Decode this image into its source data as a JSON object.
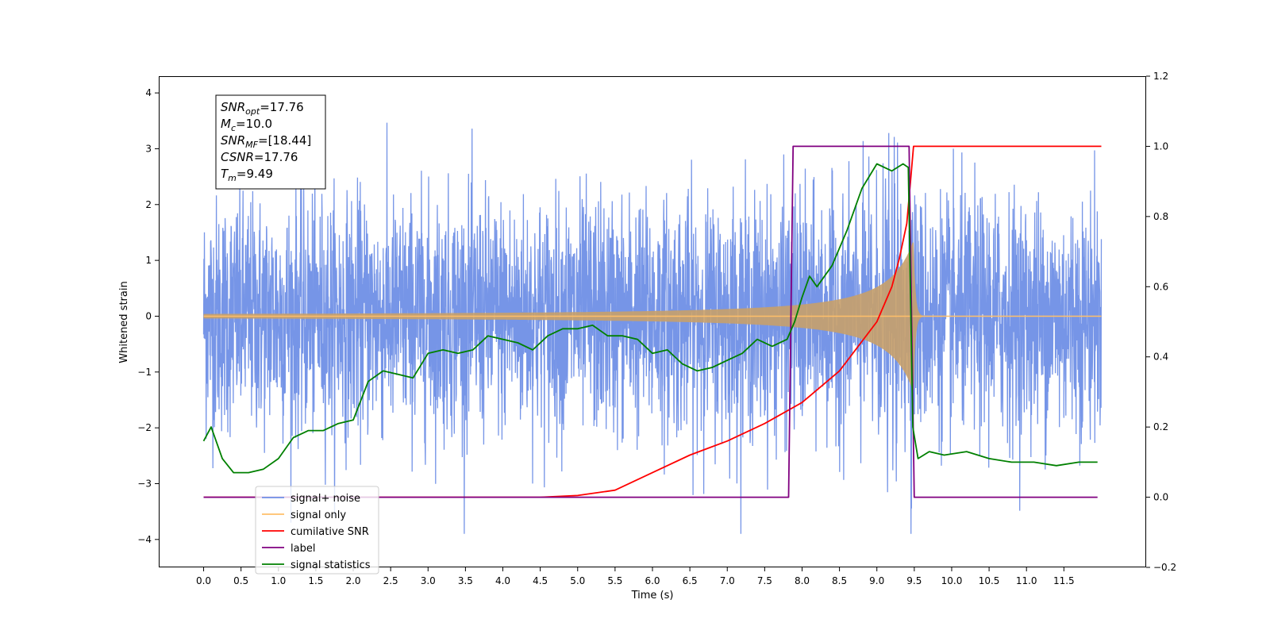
{
  "chart_data": {
    "type": "line",
    "xlabel": "Time (s)",
    "ylabel": "Whitened strain",
    "xlim": [
      -0.6,
      12.6
    ],
    "ylim": [
      -4.5,
      4.3
    ],
    "y2lim": [
      -0.2,
      1.2
    ],
    "x_ticks": [
      0.0,
      0.5,
      1.0,
      1.5,
      2.0,
      2.5,
      3.0,
      3.5,
      4.0,
      4.5,
      5.0,
      5.5,
      6.0,
      6.5,
      7.0,
      7.5,
      8.0,
      8.5,
      9.0,
      9.5,
      10.0,
      10.5,
      11.0,
      11.5
    ],
    "x_tick_labels": [
      "0.0",
      "0.5",
      "1.0",
      "1.5",
      "2.0",
      "2.5",
      "3.0",
      "3.5",
      "4.0",
      "4.5",
      "5.0",
      "5.5",
      "6.0",
      "6.5",
      "7.0",
      "7.5",
      "8.0",
      "8.5",
      "9.0",
      "9.5",
      "10.0",
      "10.5",
      "11.0",
      "11.5"
    ],
    "y_ticks": [
      -4,
      -3,
      -2,
      -1,
      0,
      1,
      2,
      3,
      4
    ],
    "y_tick_labels": [
      "−4",
      "−3",
      "−2",
      "−1",
      "0",
      "1",
      "2",
      "3",
      "4"
    ],
    "y2_ticks": [
      -0.2,
      0.0,
      0.2,
      0.4,
      0.6,
      0.8,
      1.0,
      1.2
    ],
    "y2_tick_labels": [
      "−0.2",
      "0.0",
      "0.2",
      "0.4",
      "0.6",
      "0.8",
      "1.0",
      "1.2"
    ],
    "grid": false,
    "legend_position": "lower-left",
    "annotation_lines": [
      {
        "label": "SNR",
        "sub": "opt",
        "value": "=17.76"
      },
      {
        "label": "M",
        "sub": "c",
        "value": "=10.0"
      },
      {
        "label": "SNR",
        "sub": "MF",
        "value": "=[18.44]"
      },
      {
        "label": "CSNR",
        "sub": "",
        "value": "=17.76"
      },
      {
        "label": "T",
        "sub": "m",
        "value": "=9.49"
      }
    ],
    "series": [
      {
        "name": "signal+ noise",
        "color": "#6f8fe6",
        "axis": "left",
        "x_range": [
          0.0,
          12.0
        ],
        "noise_sigma": 1.0,
        "visible_range": [
          -3.9,
          3.9
        ]
      },
      {
        "name": "signal only",
        "color": "#ffbf69",
        "axis": "left",
        "x_range": [
          0.0,
          12.0
        ],
        "peak_time": 9.49,
        "peak_amplitude": 1.35
      },
      {
        "name": "cumilative SNR",
        "color": "#ff0000",
        "axis": "right",
        "x": [
          0.0,
          4.5,
          5.0,
          5.5,
          6.0,
          6.5,
          7.0,
          7.5,
          8.0,
          8.5,
          9.0,
          9.2,
          9.3,
          9.4,
          9.45,
          9.49,
          12.0
        ],
        "y": [
          0.0,
          0.0,
          0.005,
          0.02,
          0.07,
          0.12,
          0.16,
          0.21,
          0.27,
          0.36,
          0.5,
          0.6,
          0.68,
          0.78,
          0.9,
          1.0,
          1.0
        ]
      },
      {
        "name": "label",
        "color": "#800080",
        "axis": "right",
        "x": [
          0.0,
          7.82,
          7.88,
          9.43,
          9.5,
          11.95
        ],
        "y": [
          0.0,
          0.0,
          1.0,
          1.0,
          0.0,
          0.0
        ]
      },
      {
        "name": "signal statistics",
        "color": "#008000",
        "axis": "right",
        "x": [
          0.0,
          0.1,
          0.25,
          0.4,
          0.6,
          0.8,
          1.0,
          1.2,
          1.4,
          1.6,
          1.8,
          2.0,
          2.2,
          2.4,
          2.6,
          2.8,
          3.0,
          3.2,
          3.4,
          3.6,
          3.8,
          4.0,
          4.2,
          4.4,
          4.6,
          4.8,
          5.0,
          5.2,
          5.4,
          5.6,
          5.8,
          6.0,
          6.2,
          6.4,
          6.6,
          6.8,
          7.0,
          7.2,
          7.4,
          7.6,
          7.8,
          7.9,
          8.0,
          8.1,
          8.2,
          8.4,
          8.6,
          8.8,
          9.0,
          9.2,
          9.35,
          9.42,
          9.48,
          9.55,
          9.7,
          9.9,
          10.2,
          10.5,
          10.8,
          11.1,
          11.4,
          11.7,
          11.95
        ],
        "y": [
          0.16,
          0.2,
          0.11,
          0.07,
          0.07,
          0.08,
          0.11,
          0.17,
          0.19,
          0.19,
          0.21,
          0.22,
          0.33,
          0.36,
          0.35,
          0.34,
          0.41,
          0.42,
          0.41,
          0.42,
          0.46,
          0.45,
          0.44,
          0.42,
          0.46,
          0.48,
          0.48,
          0.49,
          0.46,
          0.46,
          0.45,
          0.41,
          0.42,
          0.38,
          0.36,
          0.37,
          0.39,
          0.41,
          0.45,
          0.43,
          0.45,
          0.5,
          0.57,
          0.63,
          0.6,
          0.66,
          0.76,
          0.88,
          0.95,
          0.93,
          0.95,
          0.94,
          0.2,
          0.11,
          0.13,
          0.12,
          0.13,
          0.11,
          0.1,
          0.1,
          0.09,
          0.1,
          0.1
        ]
      }
    ]
  }
}
